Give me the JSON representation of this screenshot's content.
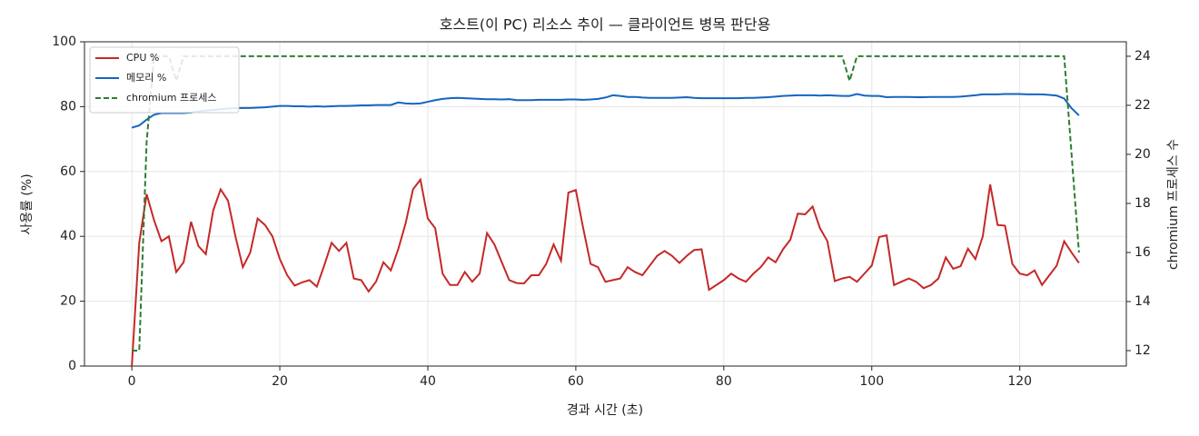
{
  "chart_data": {
    "type": "line",
    "title": "호스트(이 PC) 리소스 추이 — 클라이언트 병목 판단용",
    "xlabel": "경과 시간 (초)",
    "ylabel": "사용률 (%)",
    "y2label": "chromium 프로세스 수",
    "x": [
      0,
      1,
      2,
      3,
      4,
      5,
      6,
      7,
      8,
      9,
      10,
      11,
      12,
      13,
      14,
      15,
      16,
      17,
      18,
      19,
      20,
      21,
      22,
      23,
      24,
      25,
      26,
      27,
      28,
      29,
      30,
      31,
      32,
      33,
      34,
      35,
      36,
      37,
      38,
      39,
      40,
      41,
      42,
      43,
      44,
      45,
      46,
      47,
      48,
      49,
      50,
      51,
      52,
      53,
      54,
      55,
      56,
      57,
      58,
      59,
      60,
      61,
      62,
      63,
      64,
      65,
      66,
      67,
      68,
      69,
      70,
      71,
      72,
      73,
      74,
      75,
      76,
      77,
      78,
      79,
      80,
      81,
      82,
      83,
      84,
      85,
      86,
      87,
      88,
      89,
      90,
      91,
      92,
      93,
      94,
      95,
      96,
      97,
      98,
      99,
      100,
      101,
      102,
      103,
      104,
      105,
      106,
      107,
      108,
      109,
      110,
      111,
      112,
      113,
      114,
      115,
      116,
      117,
      118,
      119,
      120,
      121,
      122,
      123,
      124,
      125,
      126,
      127,
      128
    ],
    "series": [
      {
        "name": "CPU %",
        "color": "#c62828",
        "linestyle": "solid",
        "axis": "y",
        "values": [
          0,
          38,
          53,
          45,
          38.5,
          40,
          29,
          32,
          44.5,
          37,
          34.5,
          48,
          54.5,
          51,
          40,
          30.5,
          35,
          45.5,
          43.5,
          40,
          33,
          28,
          24.8,
          25.8,
          26.5,
          24.5,
          31,
          38,
          35.5,
          38,
          27,
          26.5,
          23,
          26,
          32,
          29.5,
          36,
          44,
          54.5,
          57.5,
          45.5,
          42.5,
          28.5,
          25,
          25,
          29,
          26,
          28.5,
          41,
          37.5,
          32,
          26.5,
          25.6,
          25.5,
          28,
          28,
          31.5,
          37.5,
          32.5,
          53.5,
          54.3,
          42.5,
          31.5,
          30.5,
          26,
          26.5,
          27,
          30.5,
          29,
          28,
          31,
          34,
          35.5,
          34,
          31.8,
          34,
          35.8,
          36,
          23.5,
          25,
          26.5,
          28.5,
          27,
          26,
          28.5,
          30.5,
          33.5,
          32,
          36,
          39,
          47,
          46.8,
          49.2,
          42.5,
          38.5,
          26.2,
          27,
          27.5,
          26,
          28.5,
          31,
          39.8,
          40.3,
          25,
          26,
          27,
          26,
          24,
          25,
          27,
          33.5,
          30,
          30.8,
          36.2,
          33,
          40,
          56,
          43.5,
          43.3,
          31.5,
          28.5,
          28,
          29.5,
          25,
          28,
          31,
          38.5,
          35,
          31.8
        ]
      },
      {
        "name": "메모리 %",
        "color": "#1565c0",
        "linestyle": "solid",
        "axis": "y",
        "values": [
          73.5,
          74.2,
          76,
          77.5,
          78,
          78,
          78,
          78,
          78.2,
          78.5,
          78.8,
          79,
          79.2,
          79.4,
          79.5,
          79.6,
          79.6,
          79.7,
          79.8,
          80,
          80.2,
          80.2,
          80.1,
          80.1,
          80,
          80.1,
          80,
          80.1,
          80.2,
          80.2,
          80.3,
          80.4,
          80.4,
          80.5,
          80.5,
          80.5,
          81.3,
          81,
          80.9,
          81,
          81.5,
          82,
          82.4,
          82.6,
          82.7,
          82.6,
          82.5,
          82.4,
          82.3,
          82.3,
          82.2,
          82.3,
          82,
          82,
          82,
          82.1,
          82.1,
          82.1,
          82.1,
          82.2,
          82.2,
          82.1,
          82.2,
          82.4,
          82.8,
          83.5,
          83.3,
          83,
          83,
          82.8,
          82.7,
          82.7,
          82.7,
          82.7,
          82.8,
          82.9,
          82.7,
          82.6,
          82.6,
          82.6,
          82.6,
          82.6,
          82.6,
          82.7,
          82.7,
          82.8,
          82.9,
          83.1,
          83.3,
          83.4,
          83.5,
          83.5,
          83.5,
          83.4,
          83.5,
          83.4,
          83.3,
          83.3,
          83.9,
          83.4,
          83.3,
          83.3,
          82.9,
          83,
          83,
          83,
          82.9,
          82.9,
          83,
          83,
          83,
          83,
          83.1,
          83.3,
          83.5,
          83.8,
          83.8,
          83.8,
          83.9,
          83.9,
          83.9,
          83.8,
          83.8,
          83.8,
          83.6,
          83.4,
          82.5,
          79.5,
          77.3
        ]
      },
      {
        "name": "chromium 프로세스",
        "color": "#2e7d32",
        "linestyle": "dashed",
        "axis": "y2",
        "values": [
          12,
          12,
          20.5,
          24,
          24,
          24,
          23,
          24,
          24,
          24,
          24,
          24,
          24,
          24,
          24,
          24,
          24,
          24,
          24,
          24,
          24,
          24,
          24,
          24,
          24,
          24,
          24,
          24,
          24,
          24,
          24,
          24,
          24,
          24,
          24,
          24,
          24,
          24,
          24,
          24,
          24,
          24,
          24,
          24,
          24,
          24,
          24,
          24,
          24,
          24,
          24,
          24,
          24,
          24,
          24,
          24,
          24,
          24,
          24,
          24,
          24,
          24,
          24,
          24,
          24,
          24,
          24,
          24,
          24,
          24,
          24,
          24,
          24,
          24,
          24,
          24,
          24,
          24,
          24,
          24,
          24,
          24,
          24,
          24,
          24,
          24,
          24,
          24,
          24,
          24,
          24,
          24,
          24,
          24,
          24,
          24,
          24,
          23,
          24,
          24,
          24,
          24,
          24,
          24,
          24,
          24,
          24,
          24,
          24,
          24,
          24,
          24,
          24,
          24,
          24,
          24,
          24,
          24,
          24,
          24,
          24,
          24,
          24,
          24,
          24,
          24,
          24,
          20,
          16
        ]
      }
    ],
    "xlim": [
      -6.4,
      134.4
    ],
    "xticks": [
      0,
      20,
      40,
      60,
      80,
      100,
      120
    ],
    "ylim": [
      0,
      100
    ],
    "yticks": [
      0,
      20,
      40,
      60,
      80,
      100
    ],
    "y2lim": [
      11.37,
      24.59
    ],
    "y2ticks": [
      12,
      14,
      16,
      18,
      20,
      22,
      24
    ],
    "grid": true,
    "legend": "upper left"
  }
}
